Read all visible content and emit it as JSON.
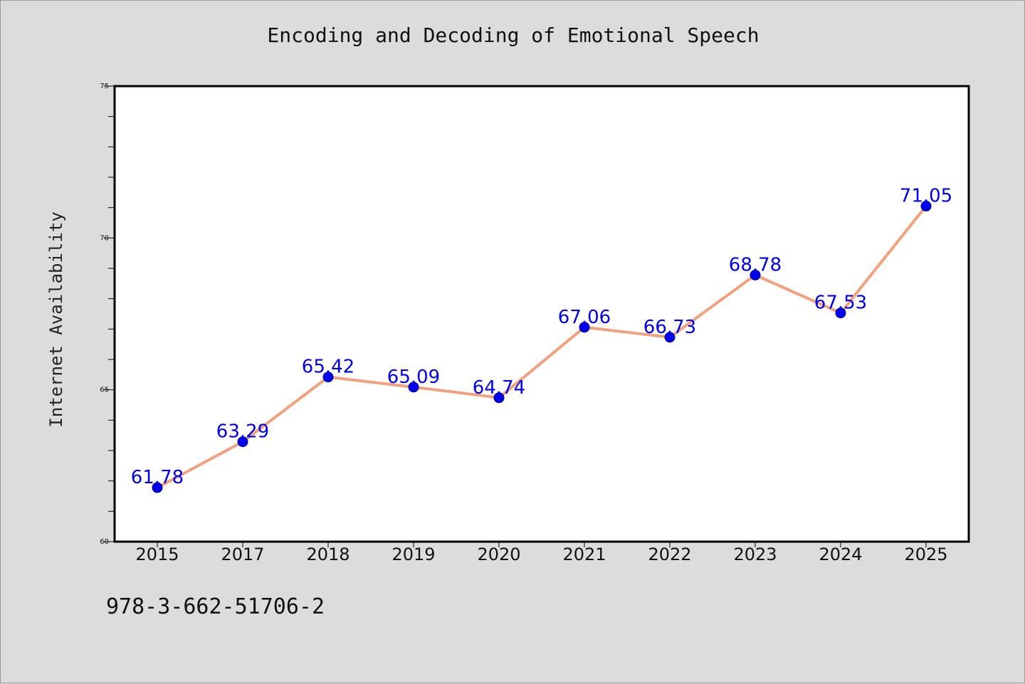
{
  "colors": {
    "background": "#dcdcdc",
    "plot_background": "#ffffff",
    "line": "#f4a07c",
    "marker": "#0000ee",
    "marker_edge": "#000080",
    "data_label": "#0000ee"
  },
  "footer": {
    "code": "978-3-662-51706-2"
  },
  "chart_data": {
    "type": "line",
    "title": "Encoding and Decoding of Emotional Speech",
    "xlabel": "",
    "ylabel": "Internet Availability",
    "categories": [
      "2015",
      "2017",
      "2018",
      "2019",
      "2020",
      "2021",
      "2022",
      "2023",
      "2024",
      "2025"
    ],
    "series": [
      {
        "values": [
          61.78,
          63.29,
          65.42,
          65.09,
          64.74,
          67.06,
          66.73,
          68.78,
          67.53,
          71.05
        ],
        "data_labels": [
          "61.78",
          "63.29",
          "65.42",
          "65.09",
          "64.74",
          "67.06",
          "66.73",
          "68.78",
          "67.53",
          "71.05"
        ]
      }
    ],
    "ylim": [
      60,
      75
    ],
    "y_major_ticks": [
      60,
      65,
      70,
      75
    ],
    "y_tick_labels": [
      "60",
      "65",
      "70",
      "75"
    ],
    "y_minor_step": 1,
    "grid": false,
    "legend": "none"
  }
}
